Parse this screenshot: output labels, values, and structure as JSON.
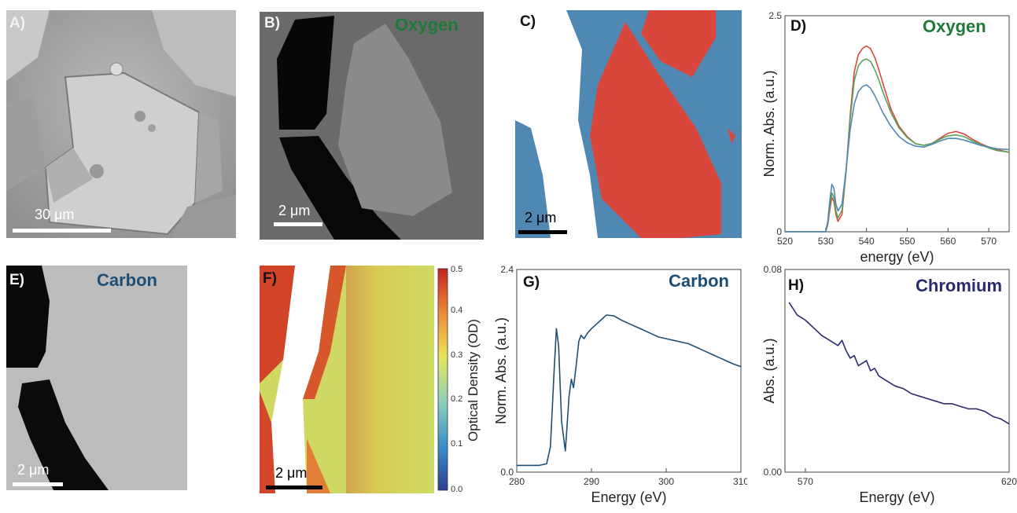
{
  "panels": {
    "A": {
      "label": "A)",
      "scalebar": "30 μm"
    },
    "B": {
      "label": "B)",
      "element": "Oxygen",
      "scalebar": "2 μm"
    },
    "C": {
      "label": "C)",
      "scalebar": "2 μm"
    },
    "D": {
      "label": "D)",
      "element": "Oxygen"
    },
    "E": {
      "label": "E)",
      "element": "Carbon",
      "scalebar": "2 μm"
    },
    "F": {
      "label": "F)",
      "scalebar": "2 μm",
      "colorbar_label": "Optical Density (OD)",
      "colorbar_ticks": [
        "0.5",
        "0.4",
        "0.3",
        "0.2",
        "0.1",
        "0.0"
      ]
    },
    "G": {
      "label": "G)",
      "element": "Carbon"
    },
    "H": {
      "label": "H)",
      "element": "Chromium"
    }
  },
  "colors": {
    "oxygen": "#1f7a3a",
    "carbon": "#1e4e73",
    "chromium": "#2a2a6e",
    "red": "#d9473c",
    "green": "#5aa35a",
    "blue": "#4f88b3"
  },
  "chart_data": [
    {
      "id": "D",
      "type": "line",
      "title": "Oxygen",
      "xlabel": "energy (eV)",
      "ylabel": "Norm. Abs. (a.u.)",
      "xlim": [
        520,
        575
      ],
      "ylim": [
        0,
        2.5
      ],
      "xticks": [
        "520",
        "530",
        "540",
        "550",
        "560",
        "570"
      ],
      "yticks": [
        "2.5",
        "0"
      ],
      "series": [
        {
          "color": "#d9473c",
          "x": [
            520,
            528,
            530,
            530.5,
            531,
            531.5,
            532,
            532.5,
            533,
            534,
            535,
            536,
            537,
            538,
            539,
            540,
            541,
            542,
            543,
            544,
            546,
            548,
            550,
            552,
            554,
            556,
            558,
            560,
            562,
            564,
            566,
            568,
            570,
            572,
            575
          ],
          "y": [
            0,
            0,
            0,
            0.08,
            0.25,
            0.4,
            0.35,
            0.2,
            0.12,
            0.2,
            0.7,
            1.35,
            1.85,
            2.05,
            2.12,
            2.15,
            2.12,
            2.02,
            1.88,
            1.72,
            1.42,
            1.22,
            1.1,
            1.02,
            1.0,
            1.02,
            1.08,
            1.14,
            1.16,
            1.13,
            1.07,
            1.02,
            0.98,
            0.95,
            0.92
          ]
        },
        {
          "color": "#5aa35a",
          "x": [
            520,
            528,
            530,
            530.5,
            531,
            531.5,
            532,
            532.5,
            533,
            534,
            535,
            536,
            537,
            538,
            539,
            540,
            541,
            542,
            543,
            544,
            546,
            548,
            550,
            552,
            554,
            556,
            558,
            560,
            562,
            564,
            566,
            568,
            570,
            572,
            575
          ],
          "y": [
            0,
            0,
            0,
            0.1,
            0.3,
            0.45,
            0.4,
            0.24,
            0.16,
            0.25,
            0.7,
            1.3,
            1.75,
            1.92,
            1.98,
            2.0,
            1.97,
            1.88,
            1.76,
            1.62,
            1.38,
            1.2,
            1.09,
            1.02,
            1.0,
            1.02,
            1.07,
            1.11,
            1.12,
            1.1,
            1.05,
            1.01,
            0.97,
            0.94,
            0.92
          ]
        },
        {
          "color": "#4f88b3",
          "x": [
            520,
            528,
            530,
            530.5,
            531,
            531.5,
            532,
            532.5,
            533,
            534,
            535,
            536,
            537,
            538,
            539,
            540,
            541,
            542,
            543,
            544,
            546,
            548,
            550,
            552,
            554,
            556,
            558,
            560,
            562,
            564,
            566,
            568,
            570,
            572,
            575
          ],
          "y": [
            0,
            0,
            0,
            0.12,
            0.36,
            0.55,
            0.5,
            0.32,
            0.24,
            0.32,
            0.72,
            1.18,
            1.48,
            1.62,
            1.68,
            1.7,
            1.66,
            1.58,
            1.48,
            1.38,
            1.22,
            1.1,
            1.03,
            0.99,
            0.98,
            1.01,
            1.05,
            1.08,
            1.08,
            1.06,
            1.03,
            1.0,
            0.98,
            0.96,
            0.95
          ]
        }
      ]
    },
    {
      "id": "G",
      "type": "line",
      "title": "Carbon",
      "xlabel": "Energy (eV)",
      "ylabel": "Norm. Abs. (a.u.)",
      "xlim": [
        280,
        310
      ],
      "ylim": [
        0,
        2.4
      ],
      "xticks": [
        "280",
        "290",
        "300",
        "310"
      ],
      "yticks": [
        "2.4",
        "0.0"
      ],
      "series": [
        {
          "color": "#1e4e73",
          "x": [
            280,
            283,
            284,
            284.5,
            285,
            285.3,
            285.6,
            286,
            286.5,
            287,
            287.3,
            287.6,
            288,
            288.3,
            288.6,
            289,
            289.5,
            290,
            291,
            292,
            293,
            294,
            295,
            296,
            297,
            298,
            299,
            300,
            301,
            302,
            303,
            304,
            305,
            306,
            307,
            308,
            309,
            310
          ],
          "y": [
            0.08,
            0.08,
            0.1,
            0.3,
            1.2,
            1.7,
            1.5,
            0.6,
            0.25,
            0.9,
            1.1,
            1.0,
            1.3,
            1.55,
            1.62,
            1.58,
            1.65,
            1.7,
            1.78,
            1.86,
            1.85,
            1.8,
            1.76,
            1.72,
            1.68,
            1.64,
            1.6,
            1.58,
            1.56,
            1.54,
            1.52,
            1.48,
            1.44,
            1.4,
            1.36,
            1.32,
            1.28,
            1.25
          ]
        }
      ]
    },
    {
      "id": "H",
      "type": "line",
      "title": "Chromium",
      "xlabel": "Energy (eV)",
      "ylabel": "Abs. (a.u.)",
      "xlim": [
        565,
        620
      ],
      "ylim": [
        0,
        0.08
      ],
      "xticks": [
        "570",
        "620"
      ],
      "yticks": [
        "0.08",
        "0.00"
      ],
      "series": [
        {
          "color": "#2a2a6e",
          "x": [
            566,
            568,
            570,
            572,
            574,
            576,
            578,
            579,
            580,
            581,
            582,
            583,
            584,
            585,
            586,
            587,
            588,
            590,
            592,
            594,
            596,
            598,
            600,
            602,
            604,
            606,
            608,
            610,
            612,
            614,
            616,
            618,
            620
          ],
          "y": [
            0.067,
            0.062,
            0.06,
            0.057,
            0.054,
            0.052,
            0.05,
            0.052,
            0.048,
            0.045,
            0.046,
            0.042,
            0.043,
            0.044,
            0.04,
            0.041,
            0.038,
            0.036,
            0.034,
            0.033,
            0.031,
            0.03,
            0.029,
            0.028,
            0.027,
            0.027,
            0.026,
            0.025,
            0.025,
            0.024,
            0.022,
            0.021,
            0.019
          ]
        }
      ]
    }
  ]
}
